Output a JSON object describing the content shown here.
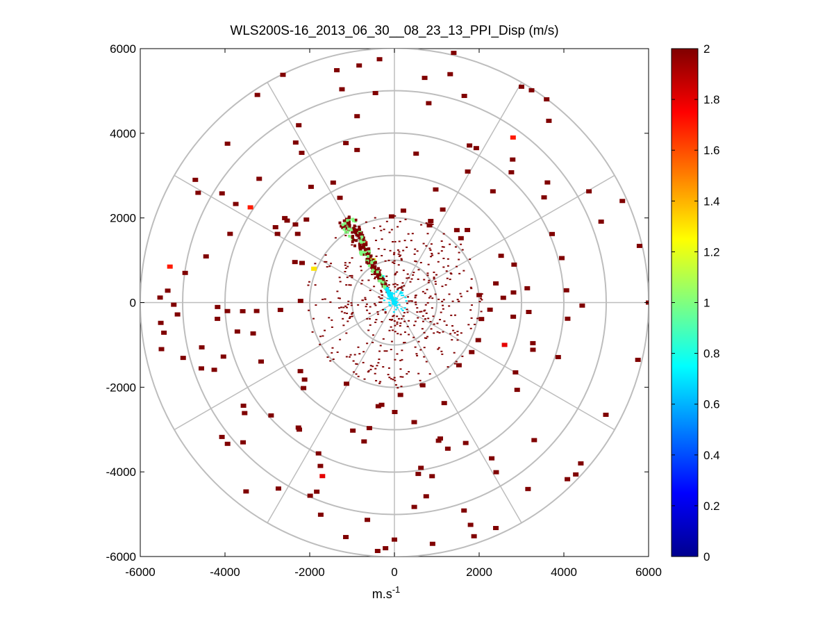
{
  "chart_data": {
    "type": "ppi-polar-scatter",
    "title": "WLS200S-16_2013_06_30__08_23_13_PPI_Disp (m/s)",
    "xlabel": "m.s",
    "xlabel_superscript": "-1",
    "ylabel": "",
    "xlim": [
      -6000,
      6000
    ],
    "ylim": [
      -6000,
      6000
    ],
    "x_ticks": [
      -6000,
      -4000,
      -2000,
      0,
      2000,
      4000,
      6000
    ],
    "y_ticks": [
      -6000,
      -4000,
      -2000,
      0,
      2000,
      4000,
      6000
    ],
    "x_tick_labels": [
      "-6000",
      "-4000",
      "-2000",
      "0",
      "2000",
      "4000",
      "6000"
    ],
    "y_tick_labels": [
      "-6000",
      "-4000",
      "-2000",
      "0",
      "2000",
      "4000",
      "6000"
    ],
    "range_rings": [
      1000,
      2000,
      3000,
      4000,
      5000,
      6000
    ],
    "spoke_angles_deg": [
      0,
      30,
      60,
      90,
      120,
      150,
      180,
      210,
      240,
      270,
      300,
      330
    ],
    "colorbar": {
      "min": 0,
      "max": 2,
      "ticks": [
        0,
        0.2,
        0.4,
        0.6,
        0.8,
        1,
        1.2,
        1.4,
        1.6,
        1.8,
        2
      ],
      "tick_labels": [
        "0",
        "0.2",
        "0.4",
        "0.6",
        "0.8",
        "1",
        "1.2",
        "1.4",
        "1.6",
        "1.8",
        "2"
      ],
      "colormap": "jet"
    },
    "scatter_points_sample": [
      {
        "x": -1100,
        "y": 1900,
        "v": 2
      },
      {
        "x": -900,
        "y": 1700,
        "v": 2
      },
      {
        "x": -700,
        "y": 1400,
        "v": 1.9
      },
      {
        "x": -500,
        "y": 1000,
        "v": 1.2
      },
      {
        "x": -300,
        "y": 600,
        "v": 0.8
      },
      {
        "x": -100,
        "y": 200,
        "v": 0.7
      },
      {
        "x": 0,
        "y": 0,
        "v": 0.7
      },
      {
        "x": -1900,
        "y": 800,
        "v": 1.3
      },
      {
        "x": -5300,
        "y": 850,
        "v": 1.7
      },
      {
        "x": -3400,
        "y": 2250,
        "v": 1.7
      },
      {
        "x": 2800,
        "y": 3900,
        "v": 1.7
      },
      {
        "x": -1700,
        "y": -4100,
        "v": 1.8
      },
      {
        "x": 2600,
        "y": -1000,
        "v": 1.8
      },
      {
        "x": 3300,
        "y": -3250,
        "v": 2
      },
      {
        "x": 4400,
        "y": -3800,
        "v": 2
      },
      {
        "x": -4700,
        "y": 2900,
        "v": 2
      },
      {
        "x": 1400,
        "y": 5900,
        "v": 2
      },
      {
        "x": 3000,
        "y": 5100,
        "v": 2
      },
      {
        "x": 6000,
        "y": 0,
        "v": 2
      },
      {
        "x": -5500,
        "y": -1100,
        "v": 2
      },
      {
        "x": 0,
        "y": -5600,
        "v": 2
      },
      {
        "x": 900,
        "y": -5700,
        "v": 2
      }
    ]
  }
}
